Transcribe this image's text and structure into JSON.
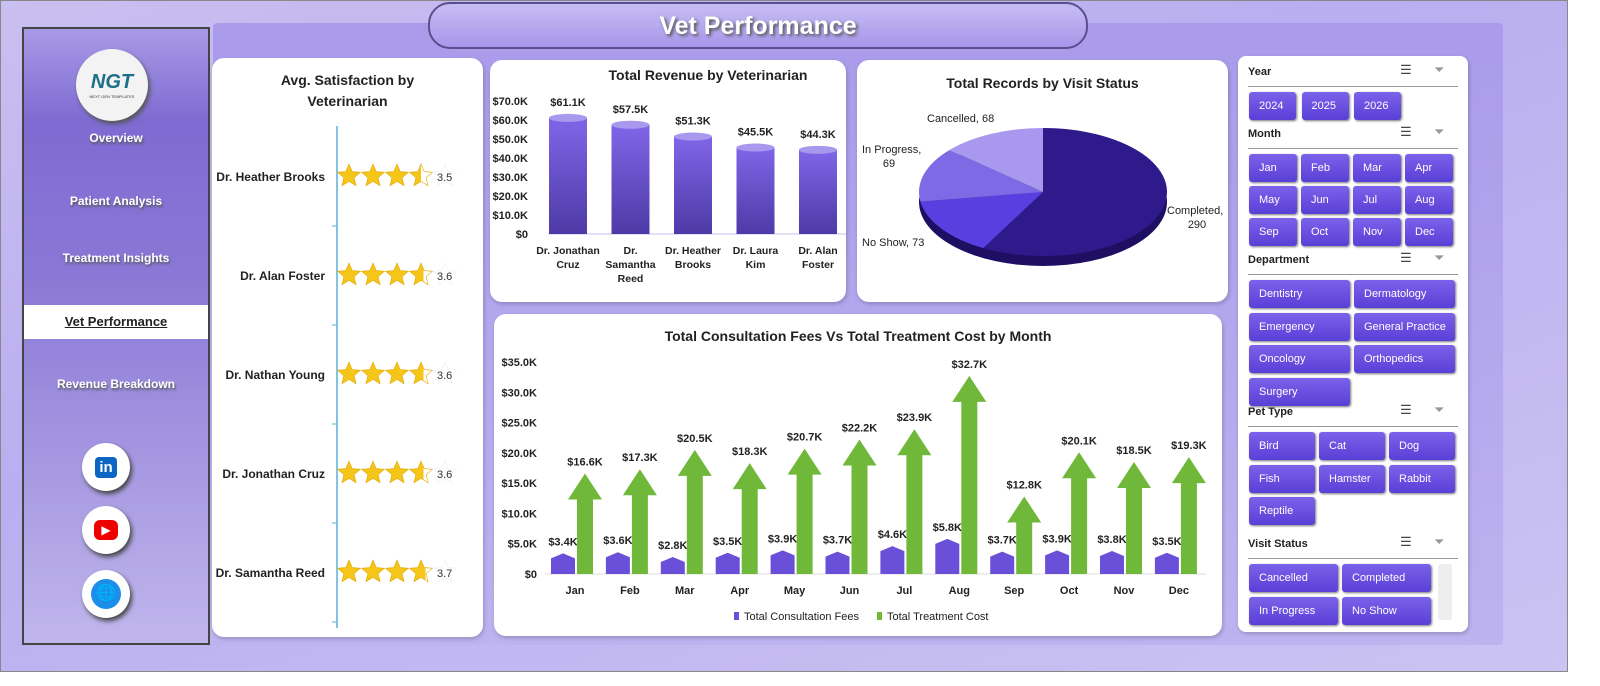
{
  "header": {
    "title": "Vet Performance"
  },
  "sidebar": {
    "logo_text": "NGT",
    "logo_sub": "NEXT GEN TEMPLATES",
    "items": [
      {
        "label": "Overview"
      },
      {
        "label": "Patient Analysis"
      },
      {
        "label": "Treatment Insights"
      },
      {
        "label": "Vet Performance",
        "active": true
      },
      {
        "label": "Revenue Breakdown"
      }
    ],
    "social": [
      {
        "icon": "linkedin-icon",
        "label": "in",
        "color": "#0a66c2"
      },
      {
        "icon": "youtube-icon",
        "label": "▶",
        "color": "#e00"
      },
      {
        "icon": "globe-icon",
        "label": "🌐",
        "color": "#1a8ee8"
      }
    ]
  },
  "satisfaction": {
    "title": "Avg. Satisfaction by Veterinarian",
    "max": 5,
    "star_color": "#f5c518",
    "rows": [
      {
        "name": "Dr. Heather Brooks",
        "value": 3.5
      },
      {
        "name": "Dr. Alan Foster",
        "value": 3.6
      },
      {
        "name": "Dr. Nathan Young",
        "value": 3.6
      },
      {
        "name": "Dr. Jonathan Cruz",
        "value": 3.6
      },
      {
        "name": "Dr. Samantha Reed",
        "value": 3.7
      }
    ]
  },
  "chart_data": [
    {
      "type": "bar",
      "title": "Total Revenue  by Veterinarian",
      "categories": [
        "Dr. Jonathan Cruz",
        "Dr. Samantha Reed",
        "Dr. Heather Brooks",
        "Dr. Laura Kim",
        "Dr. Alan Foster"
      ],
      "cat_lines": [
        [
          "Dr. Jonathan",
          "Cruz"
        ],
        [
          "Dr.",
          "Samantha",
          "Reed"
        ],
        [
          "Dr. Heather",
          "Brooks"
        ],
        [
          "Dr. Laura",
          "Kim"
        ],
        [
          "Dr. Alan",
          "Foster"
        ]
      ],
      "values": [
        61.1,
        57.5,
        51.3,
        45.5,
        44.3
      ],
      "labels": [
        "$61.1K",
        "$57.5K",
        "$51.3K",
        "$45.5K",
        "$44.3K"
      ],
      "ylim": [
        0,
        70
      ],
      "yticks": [
        "$0",
        "$10.0K",
        "$20.0K",
        "$30.0K",
        "$40.0K",
        "$50.0K",
        "$60.0K",
        "$70.0K"
      ],
      "color": "#7a62dc"
    },
    {
      "type": "pie",
      "title": "Total Records by Visit Status",
      "slices": [
        {
          "label": "Completed",
          "value": 290,
          "color": "#2e1a8a"
        },
        {
          "label": "No Show",
          "value": 73,
          "color": "#5a3fe0"
        },
        {
          "label": "In Progress",
          "value": 69,
          "color": "#7f6ae6"
        },
        {
          "label": "Cancelled",
          "value": 68,
          "color": "#a898ee"
        }
      ],
      "label_text": [
        "Completed,",
        "290",
        "No Show, 73",
        "In Progress,",
        "69",
        "Cancelled, 68"
      ]
    },
    {
      "type": "bar",
      "title": "Total Consultation  Fees Vs Total Treatment Cost by Month",
      "categories": [
        "Jan",
        "Feb",
        "Mar",
        "Apr",
        "May",
        "Jun",
        "Jul",
        "Aug",
        "Sep",
        "Oct",
        "Nov",
        "Dec"
      ],
      "ylim": [
        0,
        35
      ],
      "yticks": [
        "$0",
        "$5.0K",
        "$10.0K",
        "$15.0K",
        "$20.0K",
        "$25.0K",
        "$30.0K",
        "$35.0K"
      ],
      "legend": "bottom",
      "series": [
        {
          "name": "Total Consultation Fees",
          "color": "#6a50d8",
          "values": [
            3.4,
            3.6,
            2.8,
            3.5,
            3.9,
            3.7,
            4.6,
            5.8,
            3.7,
            3.9,
            3.8,
            3.5
          ],
          "labels": [
            "$3.4K",
            "$3.6K",
            "$2.8K",
            "$3.5K",
            "$3.9K",
            "$3.7K",
            "$4.6K",
            "$5.8K",
            "$3.7K",
            "$3.9K",
            "$3.8K",
            "$3.5K"
          ]
        },
        {
          "name": "Total Treatment Cost",
          "color": "#6fb83a",
          "values": [
            16.6,
            17.3,
            20.5,
            18.3,
            20.7,
            22.2,
            23.9,
            32.7,
            12.8,
            20.1,
            18.5,
            19.3
          ],
          "labels": [
            "$16.6K",
            "$17.3K",
            "$20.5K",
            "$18.3K",
            "$20.7K",
            "$22.2K",
            "$23.9K",
            "$32.7K",
            "$12.8K",
            "$20.1K",
            "$18.5K",
            "$19.3K"
          ]
        }
      ]
    }
  ],
  "slicers": [
    {
      "title": "Year",
      "items": [
        "2024",
        "2025",
        "2026"
      ]
    },
    {
      "title": "Month",
      "items": [
        "Jan",
        "Feb",
        "Mar",
        "Apr",
        "May",
        "Jun",
        "Jul",
        "Aug",
        "Sep",
        "Oct",
        "Nov",
        "Dec"
      ]
    },
    {
      "title": "Department",
      "items": [
        "Dentistry",
        "Dermatology",
        "Emergency",
        "General Practice",
        "Oncology",
        "Orthopedics",
        "Surgery"
      ]
    },
    {
      "title": "Pet Type",
      "items": [
        "Bird",
        "Cat",
        "Dog",
        "Fish",
        "Hamster",
        "Rabbit",
        "Reptile"
      ]
    },
    {
      "title": "Visit Status",
      "items": [
        "Cancelled",
        "Completed",
        "In Progress",
        "No Show"
      ]
    }
  ]
}
